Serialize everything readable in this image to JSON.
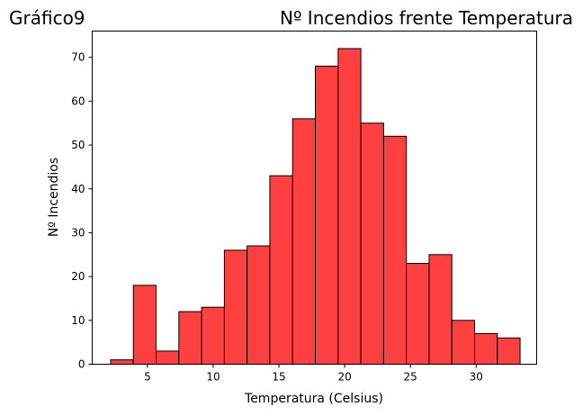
{
  "chart_data": {
    "type": "bar",
    "title": "Nº Incendios frente Temperatura",
    "subtitle": "Gráfico9",
    "xlabel": "Temperatura (Celsius)",
    "ylabel": "Nº Incendios",
    "xlim": [
      0.8,
      34.6
    ],
    "ylim": [
      0,
      76
    ],
    "x_ticks": [
      5,
      10,
      15,
      20,
      25,
      30
    ],
    "y_ticks": [
      0,
      10,
      20,
      30,
      40,
      50,
      60,
      70
    ],
    "bin_edges": [
      2.2,
      3.93,
      5.66,
      7.39,
      9.12,
      10.85,
      12.58,
      14.31,
      16.04,
      17.77,
      19.5,
      21.23,
      22.96,
      24.69,
      26.42,
      28.15,
      29.88,
      31.61,
      33.34
    ],
    "values": [
      1,
      18,
      3,
      12,
      13,
      26,
      27,
      43,
      56,
      68,
      72,
      55,
      52,
      23,
      25,
      10,
      7,
      6
    ],
    "bar_color": "#ff4040",
    "edge_color": "#000000",
    "grid": false,
    "legend": "none"
  }
}
